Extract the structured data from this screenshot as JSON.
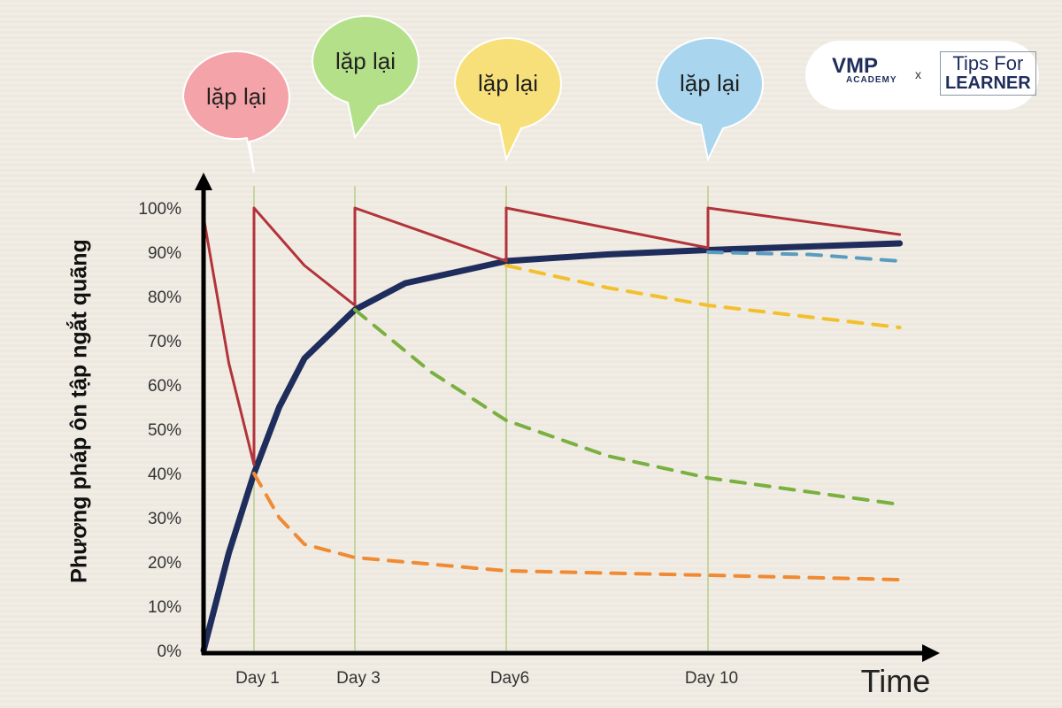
{
  "chart_data": {
    "type": "line",
    "ylabel": "Phương pháp ôn tập ngắt quãng",
    "xlabel": "Time",
    "yticks": [
      "0%",
      "10%",
      "20%",
      "30%",
      "40%",
      "50%",
      "60%",
      "70%",
      "80%",
      "90%",
      "100%"
    ],
    "ylim": [
      0,
      100
    ],
    "xlim": [
      0,
      13.8
    ],
    "xticks": [
      {
        "x": 1,
        "label": "Day 1"
      },
      {
        "x": 3,
        "label": "Day 3"
      },
      {
        "x": 6,
        "label": "Day6"
      },
      {
        "x": 10,
        "label": "Day 10"
      }
    ],
    "series": [
      {
        "color": "#1f2d5c",
        "style": "solid-thick",
        "points": [
          [
            0,
            0
          ],
          [
            0.5,
            22
          ],
          [
            1,
            40
          ],
          [
            1.5,
            55
          ],
          [
            2,
            66
          ],
          [
            3,
            77
          ],
          [
            4,
            83
          ],
          [
            6,
            88
          ],
          [
            8,
            89.5
          ],
          [
            10,
            90.5
          ],
          [
            13.8,
            92
          ]
        ]
      },
      {
        "color": "#b3333a",
        "style": "solid",
        "points": [
          [
            0,
            98
          ],
          [
            0.5,
            65
          ],
          [
            1,
            42
          ],
          [
            1,
            100
          ],
          [
            2,
            87
          ],
          [
            3,
            78
          ],
          [
            3,
            100
          ],
          [
            6,
            88
          ],
          [
            6,
            100
          ],
          [
            10,
            91
          ],
          [
            10,
            100
          ],
          [
            13.8,
            94
          ]
        ]
      },
      {
        "color": "#f08a33",
        "style": "dashed",
        "points": [
          [
            1,
            40
          ],
          [
            1.5,
            30
          ],
          [
            2,
            24
          ],
          [
            3,
            21
          ],
          [
            6,
            18
          ],
          [
            10,
            17
          ],
          [
            13.8,
            16
          ]
        ]
      },
      {
        "color": "#7ab040",
        "style": "dashed",
        "points": [
          [
            3,
            77
          ],
          [
            4.5,
            63
          ],
          [
            6,
            52
          ],
          [
            8,
            44
          ],
          [
            10,
            39
          ],
          [
            13.8,
            33
          ]
        ]
      },
      {
        "color": "#f2c02e",
        "style": "dashed",
        "points": [
          [
            6,
            87
          ],
          [
            8,
            82
          ],
          [
            10,
            78
          ],
          [
            13.8,
            73
          ]
        ]
      },
      {
        "color": "#5a9cc0",
        "style": "dashed",
        "points": [
          [
            10,
            90
          ],
          [
            12,
            89.5
          ],
          [
            13.8,
            88
          ]
        ]
      }
    ],
    "annotations": [
      {
        "text": "lặp lại",
        "x": 1,
        "color": "#f4a3a8"
      },
      {
        "text": "lặp lại",
        "x": 3,
        "color": "#b4e08a"
      },
      {
        "text": "lặp lại",
        "x": 6,
        "color": "#f7e07a"
      },
      {
        "text": "lặp lại",
        "x": 10,
        "color": "#a9d6ee"
      }
    ]
  },
  "logo": {
    "vmp": "VMP",
    "academy": "ACADEMY",
    "sep": "x",
    "tips": "Tips For",
    "learner": "LEARNER"
  }
}
